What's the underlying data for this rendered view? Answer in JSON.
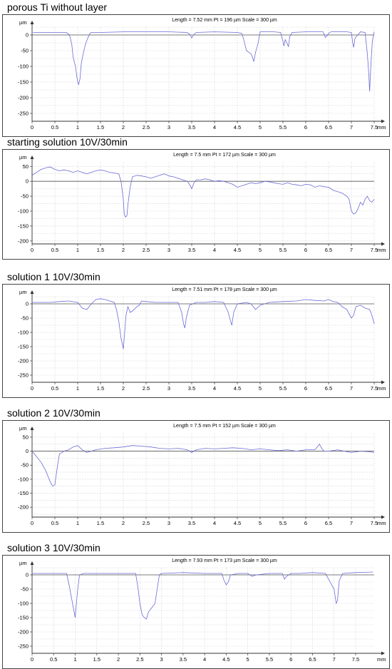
{
  "panels": [
    {
      "title": "porous Ti without layer",
      "header": "Length = 7.52 mm  Pt = 196 µm  Scale = 300 µm",
      "y_unit": "µm",
      "x_unit": "mm",
      "chart_data": {
        "type": "line",
        "xlim": [
          0,
          7.5
        ],
        "ylim": [
          -275,
          25
        ],
        "x_ticks": [
          0,
          0.5,
          1,
          1.5,
          2,
          2.5,
          3,
          3.5,
          4,
          4.5,
          5,
          5.5,
          6,
          6.5,
          7,
          7.5
        ],
        "y_ticks": [
          0,
          -50,
          -100,
          -150,
          -200,
          -250
        ],
        "tick_labels_x": [
          "0",
          "0.5",
          "1",
          "1.5",
          "2",
          "2.5",
          "3",
          "3.5",
          "4",
          "4.5",
          "5",
          "5.5",
          "6",
          "6.5",
          "7",
          "7.5"
        ],
        "tick_labels_y": [
          "0",
          "-50",
          "-100",
          "-150",
          "-200",
          "-250"
        ],
        "grid": true,
        "series": [
          {
            "x": [
              0.02,
              0.2,
              0.4,
              0.6,
              0.75,
              0.82,
              0.87,
              0.9,
              0.95,
              0.98,
              1.0,
              1.02,
              1.05,
              1.08,
              1.12,
              1.17,
              1.22,
              1.27,
              1.3,
              1.35,
              1.4,
              1.5,
              2.0,
              2.5,
              3.0,
              3.4,
              3.47,
              3.5,
              3.55,
              3.6,
              4.0,
              4.5,
              4.6,
              4.65,
              4.7,
              4.75,
              4.8,
              4.83,
              4.86,
              4.9,
              4.95,
              5.0,
              5.3,
              5.45,
              5.48,
              5.5,
              5.52,
              5.55,
              5.6,
              5.62,
              5.65,
              5.7,
              6.0,
              6.38,
              6.43,
              6.47,
              6.5,
              6.55,
              6.9,
              7.0,
              7.03,
              7.05,
              7.08,
              7.2,
              7.3,
              7.35,
              7.38,
              7.4,
              7.43,
              7.46,
              7.5
            ],
            "y": [
              8,
              8,
              8,
              8,
              8,
              0,
              -30,
              -70,
              -100,
              -130,
              -150,
              -158,
              -140,
              -90,
              -60,
              -30,
              -10,
              5,
              8,
              8,
              8,
              8,
              10,
              10,
              10,
              8,
              0,
              -10,
              2,
              8,
              10,
              8,
              5,
              -20,
              -50,
              -55,
              -60,
              -70,
              -85,
              -55,
              -30,
              10,
              10,
              8,
              -10,
              -20,
              -35,
              -15,
              -30,
              -38,
              -5,
              8,
              10,
              10,
              -8,
              -2,
              5,
              10,
              10,
              8,
              -25,
              -40,
              -10,
              10,
              8,
              -60,
              -120,
              -180,
              -90,
              -20,
              10
            ]
          }
        ]
      }
    },
    {
      "title": "starting solution 10V/30min",
      "header": "Length = 7.5 mm  Pt = 172 µm  Scale = 300 µm",
      "y_unit": "µm",
      "x_unit": "mm",
      "chart_data": {
        "type": "line",
        "xlim": [
          0,
          7.5
        ],
        "ylim": [
          -210,
          65
        ],
        "x_ticks": [
          0,
          0.5,
          1,
          1.5,
          2,
          2.5,
          3,
          3.5,
          4,
          4.5,
          5,
          5.5,
          6,
          6.5,
          7,
          7.5
        ],
        "y_ticks": [
          50,
          0,
          -50,
          -100,
          -150,
          -200
        ],
        "tick_labels_x": [
          "0",
          "0.5",
          "1",
          "1.5",
          "2",
          "2.5",
          "3",
          "3.5",
          "4",
          "4.5",
          "5",
          "5.5",
          "6",
          "6.5",
          "7",
          "7.5"
        ],
        "tick_labels_y": [
          "50",
          "0",
          "-50",
          "-100",
          "-150",
          "-200"
        ],
        "grid": true,
        "series": [
          {
            "x": [
              0.0,
              0.1,
              0.2,
              0.3,
              0.4,
              0.5,
              0.6,
              0.7,
              0.8,
              0.9,
              1.0,
              1.1,
              1.2,
              1.3,
              1.4,
              1.5,
              1.6,
              1.7,
              1.8,
              1.9,
              1.95,
              2.0,
              2.02,
              2.05,
              2.08,
              2.1,
              2.15,
              2.2,
              2.3,
              2.4,
              2.5,
              2.6,
              2.7,
              2.8,
              2.9,
              3.0,
              3.1,
              3.2,
              3.3,
              3.4,
              3.45,
              3.5,
              3.55,
              3.6,
              3.7,
              3.8,
              3.9,
              4.0,
              4.1,
              4.2,
              4.3,
              4.4,
              4.5,
              4.6,
              4.7,
              4.8,
              4.9,
              5.0,
              5.1,
              5.2,
              5.3,
              5.4,
              5.5,
              5.6,
              5.7,
              5.8,
              5.9,
              6.0,
              6.1,
              6.2,
              6.3,
              6.4,
              6.5,
              6.6,
              6.7,
              6.8,
              6.9,
              6.95,
              7.0,
              7.05,
              7.1,
              7.15,
              7.2,
              7.25,
              7.3,
              7.35,
              7.4,
              7.45,
              7.5
            ],
            "y": [
              20,
              30,
              40,
              45,
              48,
              40,
              35,
              38,
              35,
              30,
              35,
              30,
              25,
              30,
              35,
              38,
              35,
              30,
              28,
              25,
              0,
              -60,
              -110,
              -120,
              -115,
              -80,
              -20,
              15,
              20,
              18,
              15,
              10,
              15,
              20,
              25,
              18,
              15,
              10,
              5,
              0,
              -10,
              -25,
              -5,
              5,
              5,
              8,
              5,
              0,
              2,
              0,
              -5,
              -10,
              -20,
              -15,
              -10,
              -5,
              -8,
              -5,
              0,
              -2,
              -5,
              -8,
              -10,
              -5,
              -10,
              -12,
              -15,
              -10,
              -12,
              -20,
              -15,
              -18,
              -20,
              -30,
              -35,
              -40,
              -50,
              -60,
              -100,
              -110,
              -105,
              -90,
              -70,
              -80,
              -60,
              -50,
              -65,
              -70,
              -60
            ]
          }
        ]
      }
    },
    {
      "title": "solution 1 10V/30min",
      "header": "Length = 7.51 mm  Pt = 178 µm  Scale = 300 µm",
      "y_unit": "µm",
      "x_unit": "mm",
      "chart_data": {
        "type": "line",
        "xlim": [
          0,
          7.5
        ],
        "ylim": [
          -275,
          25
        ],
        "x_ticks": [
          0,
          0.5,
          1,
          1.5,
          2,
          2.5,
          3,
          3.5,
          4,
          4.5,
          5,
          5.5,
          6,
          6.5,
          7,
          7.5
        ],
        "y_ticks": [
          0,
          -50,
          -100,
          -150,
          -200,
          -250
        ],
        "tick_labels_x": [
          "0",
          "0.5",
          "1",
          "1.5",
          "2",
          "2.5",
          "3",
          "3.5",
          "4",
          "4.5",
          "5",
          "5.5",
          "6",
          "6.5",
          "7",
          "7.5"
        ],
        "tick_labels_y": [
          "0",
          "-50",
          "-100",
          "-150",
          "-200",
          "-250"
        ],
        "grid": true,
        "series": [
          {
            "x": [
              0.0,
              0.2,
              0.4,
              0.6,
              0.8,
              1.0,
              1.1,
              1.2,
              1.3,
              1.4,
              1.5,
              1.6,
              1.7,
              1.8,
              1.85,
              1.9,
              1.95,
              2.0,
              2.03,
              2.06,
              2.1,
              2.15,
              2.2,
              2.3,
              2.35,
              2.4,
              2.5,
              2.7,
              3.0,
              3.2,
              3.28,
              3.32,
              3.35,
              3.38,
              3.45,
              3.6,
              3.8,
              4.0,
              4.2,
              4.3,
              4.35,
              4.38,
              4.42,
              4.5,
              4.7,
              4.8,
              4.9,
              5.0,
              5.2,
              5.5,
              5.8,
              6.0,
              6.2,
              6.4,
              6.5,
              6.6,
              6.7,
              6.8,
              6.9,
              6.95,
              7.0,
              7.05,
              7.1,
              7.2,
              7.3,
              7.4,
              7.45,
              7.5
            ],
            "y": [
              5,
              5,
              5,
              8,
              10,
              5,
              -15,
              -20,
              0,
              15,
              18,
              15,
              10,
              5,
              -20,
              -60,
              -120,
              -158,
              -100,
              -40,
              -10,
              -30,
              -25,
              -10,
              -5,
              10,
              8,
              5,
              5,
              5,
              -30,
              -70,
              -85,
              -50,
              -5,
              5,
              5,
              8,
              5,
              -30,
              -60,
              -75,
              -30,
              0,
              5,
              0,
              -20,
              -5,
              5,
              8,
              10,
              15,
              12,
              10,
              15,
              8,
              5,
              -10,
              -20,
              -35,
              -50,
              -40,
              -10,
              -5,
              -15,
              -20,
              -40,
              -70
            ]
          }
        ]
      }
    },
    {
      "title": "solution 2 10V/30min",
      "header": "Length = 7.5 mm  Pt = 152 µm  Scale = 300 µm",
      "y_unit": "µm",
      "x_unit": "mm",
      "chart_data": {
        "type": "line",
        "xlim": [
          0,
          7.5
        ],
        "ylim": [
          -235,
          65
        ],
        "x_ticks": [
          0,
          0.5,
          1,
          1.5,
          2,
          2.5,
          3,
          3.5,
          4,
          4.5,
          5,
          5.5,
          6,
          6.5,
          7,
          7.5
        ],
        "y_ticks": [
          50,
          0,
          -50,
          -100,
          -150,
          -200
        ],
        "tick_labels_x": [
          "0",
          "0.5",
          "1",
          "1.5",
          "2",
          "2.5",
          "3",
          "3.5",
          "4",
          "4.5",
          "5",
          "5.5",
          "6",
          "6.5",
          "7",
          "7.5"
        ],
        "tick_labels_y": [
          "50",
          "0",
          "-50",
          "-100",
          "-150",
          "-200"
        ],
        "grid": true,
        "series": [
          {
            "x": [
              0.0,
              0.1,
              0.2,
              0.3,
              0.35,
              0.4,
              0.45,
              0.5,
              0.55,
              0.6,
              0.7,
              0.8,
              0.9,
              1.0,
              1.1,
              1.2,
              1.4,
              1.6,
              1.8,
              2.0,
              2.2,
              2.4,
              2.6,
              2.8,
              3.0,
              3.2,
              3.4,
              3.5,
              3.6,
              3.8,
              4.0,
              4.2,
              4.4,
              4.6,
              4.8,
              5.0,
              5.2,
              5.4,
              5.6,
              5.8,
              6.0,
              6.2,
              6.25,
              6.3,
              6.35,
              6.4,
              6.5,
              6.7,
              6.9,
              7.0,
              7.2,
              7.4,
              7.5
            ],
            "y": [
              0,
              -20,
              -40,
              -70,
              -90,
              -110,
              -125,
              -120,
              -60,
              -10,
              0,
              5,
              15,
              20,
              5,
              -5,
              5,
              10,
              12,
              15,
              20,
              18,
              15,
              10,
              8,
              10,
              5,
              -5,
              5,
              10,
              8,
              10,
              12,
              10,
              5,
              8,
              5,
              2,
              5,
              0,
              5,
              5,
              15,
              25,
              10,
              0,
              0,
              5,
              -2,
              -5,
              0,
              -2,
              -5
            ]
          }
        ]
      }
    },
    {
      "title": "solution 3 10V/30min",
      "header": "Length = 7.93 mm  Pt = 173 µm  Scale = 300 µm",
      "y_unit": "µm",
      "x_unit": "mm",
      "chart_data": {
        "type": "line",
        "xlim": [
          0,
          7.93
        ],
        "ylim": [
          -275,
          25
        ],
        "x_ticks": [
          0,
          0.5,
          1,
          1.5,
          2,
          2.5,
          3,
          3.5,
          4,
          4.5,
          5,
          5.5,
          6,
          6.5,
          7,
          7.5
        ],
        "y_ticks": [
          0,
          -50,
          -100,
          -150,
          -200,
          -250
        ],
        "tick_labels_x": [
          "0",
          "0.5",
          "1",
          "1.5",
          "2",
          "2.5",
          "3",
          "3.5",
          "4",
          "4.5",
          "5",
          "5.5",
          "6",
          "6.5",
          "7",
          "7.5"
        ],
        "tick_labels_y": [
          "0",
          "-50",
          "-100",
          "-150",
          "-200",
          "-250"
        ],
        "grid": true,
        "series": [
          {
            "x": [
              0.0,
              0.2,
              0.4,
              0.6,
              0.8,
              0.85,
              0.9,
              0.95,
              1.0,
              1.05,
              1.1,
              1.2,
              1.5,
              2.0,
              2.4,
              2.45,
              2.5,
              2.55,
              2.6,
              2.65,
              2.7,
              2.75,
              2.8,
              2.85,
              2.9,
              2.95,
              3.0,
              3.5,
              4.0,
              4.4,
              4.45,
              4.5,
              4.55,
              4.6,
              4.8,
              5.0,
              5.1,
              5.2,
              5.5,
              5.8,
              5.85,
              5.9,
              6.0,
              6.2,
              6.5,
              6.8,
              7.0,
              7.05,
              7.08,
              7.12,
              7.2,
              7.5,
              7.9
            ],
            "y": [
              5,
              5,
              5,
              5,
              5,
              -30,
              -70,
              -110,
              -150,
              -60,
              0,
              5,
              5,
              5,
              5,
              -40,
              -100,
              -140,
              -150,
              -155,
              -130,
              -120,
              -110,
              -100,
              -50,
              0,
              5,
              8,
              5,
              5,
              -20,
              -35,
              -25,
              0,
              5,
              5,
              -5,
              0,
              5,
              5,
              -15,
              -5,
              5,
              5,
              8,
              5,
              -50,
              -100,
              -90,
              -20,
              5,
              8,
              10
            ]
          }
        ]
      }
    }
  ]
}
